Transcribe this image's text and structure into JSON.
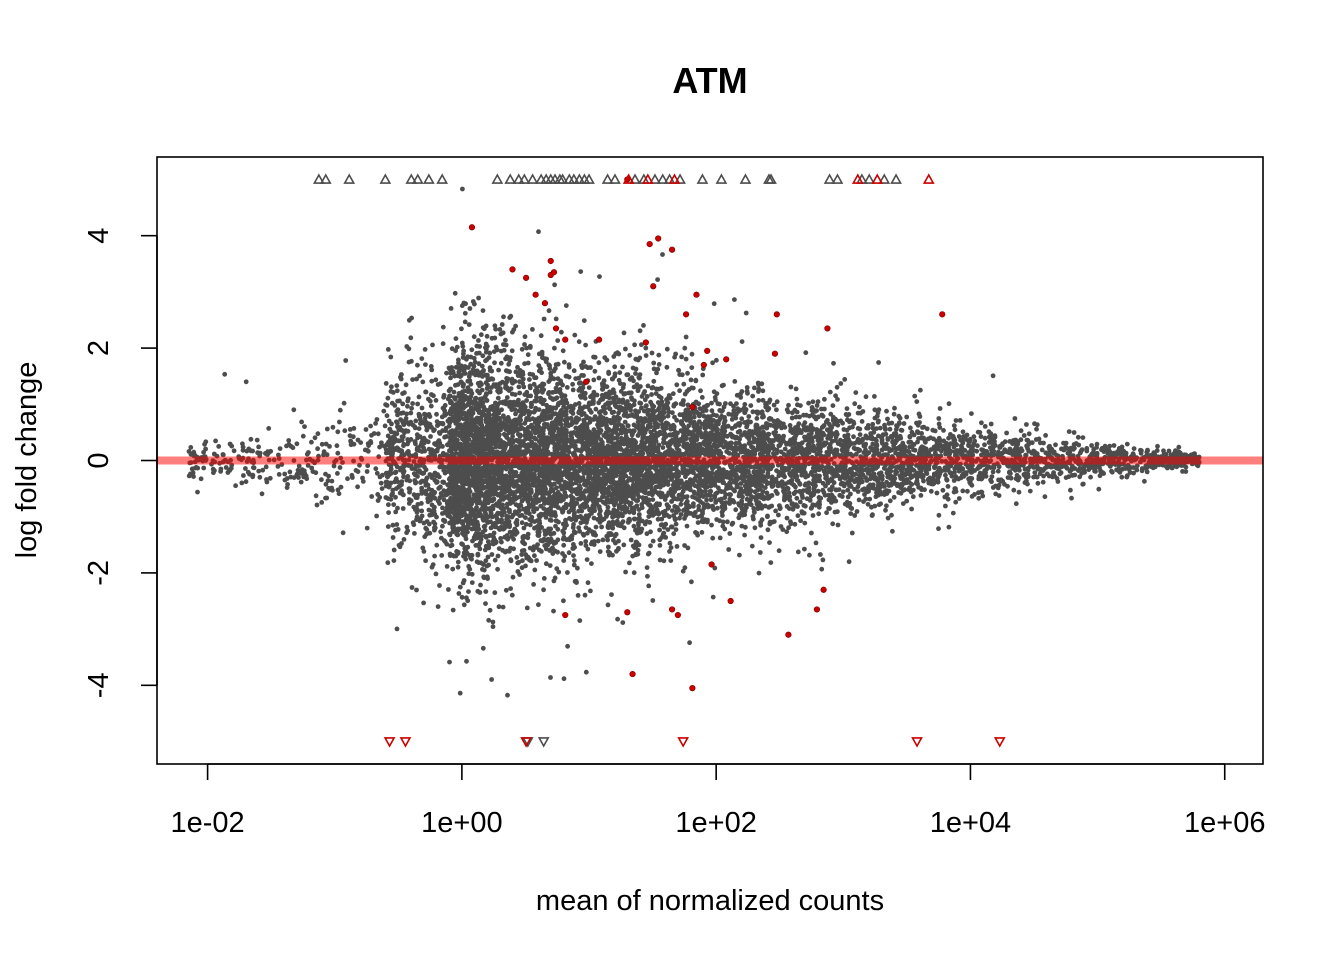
{
  "chart_data": {
    "type": "scatter",
    "title": "ATM",
    "xlabel": "mean of normalized counts",
    "ylabel": "log fold change",
    "x_scale": "log10",
    "xlim": [
      0.004,
      2000000
    ],
    "ylim": [
      -5.4,
      5.4
    ],
    "x_ticks": [
      0.01,
      1,
      100,
      10000,
      1000000
    ],
    "x_tick_labels": [
      "1e-02",
      "1e+00",
      "1e+02",
      "1e+04",
      "1e+06"
    ],
    "y_ticks": [
      -4,
      -2,
      0,
      2,
      4
    ],
    "y_tick_labels": [
      "-4",
      "-2",
      "0",
      "2",
      "4"
    ],
    "grid": false,
    "legend": "none",
    "reference_line": {
      "y": 0,
      "color": "#ff0000",
      "alpha": 0.5
    },
    "colors": {
      "not_significant": "#4d4d4d",
      "significant": "#cc0000",
      "frame": "#000000"
    },
    "series": [
      {
        "name": "",
        "color": "#cc0000",
        "points": [
          [
            1.2,
            4.15
          ],
          [
            2.5,
            3.4
          ],
          [
            3.2,
            3.25
          ],
          [
            3.8,
            2.95
          ],
          [
            4.5,
            2.8
          ],
          [
            5.0,
            3.55
          ],
          [
            5.0,
            3.3
          ],
          [
            5.3,
            3.35
          ],
          [
            5.5,
            2.35
          ],
          [
            6.5,
            2.15
          ],
          [
            9.5,
            1.4
          ],
          [
            12,
            2.15
          ],
          [
            20,
            5.0
          ],
          [
            28,
            2.1
          ],
          [
            30,
            3.85
          ],
          [
            32,
            3.1
          ],
          [
            35,
            3.95
          ],
          [
            45,
            3.75
          ],
          [
            58,
            2.6
          ],
          [
            65,
            0.95
          ],
          [
            70,
            2.95
          ],
          [
            80,
            1.7
          ],
          [
            85,
            1.95
          ],
          [
            120,
            1.8
          ],
          [
            290,
            1.9
          ],
          [
            300,
            2.6
          ],
          [
            750,
            2.35
          ],
          [
            6000,
            2.6
          ],
          [
            6.5,
            -2.75
          ],
          [
            20,
            -2.7
          ],
          [
            22,
            -3.8
          ],
          [
            45,
            -2.65
          ],
          [
            50,
            -2.75
          ],
          [
            65,
            -4.05
          ],
          [
            92,
            -1.85
          ],
          [
            130,
            -2.5
          ],
          [
            370,
            -3.1
          ],
          [
            620,
            -2.65
          ],
          [
            700,
            -2.3
          ]
        ]
      }
    ],
    "overflow_markers": {
      "top_y": 5.0,
      "bottom_y": -5.0,
      "top_gray_x": [
        0.075,
        0.085,
        0.13,
        0.25,
        0.4,
        0.45,
        0.55,
        0.7,
        1.9,
        2.4,
        2.8,
        3.1,
        3.6,
        4.2,
        4.6,
        5.0,
        5.4,
        5.9,
        6.2,
        7.0,
        7.6,
        8.4,
        9.2,
        10,
        14,
        16,
        23,
        27,
        33,
        38,
        43,
        52,
        78,
        110,
        170,
        260,
        270,
        780,
        900,
        1400,
        1600,
        2100,
        2600
      ],
      "top_red_x": [
        20.5,
        29,
        47,
        1300,
        1850,
        4700
      ],
      "bottom_gray_x": [
        3.3,
        4.4
      ],
      "bottom_red_x": [
        0.27,
        0.36,
        3.2,
        55,
        3800,
        17000
      ]
    },
    "background_point_count": 9000
  }
}
